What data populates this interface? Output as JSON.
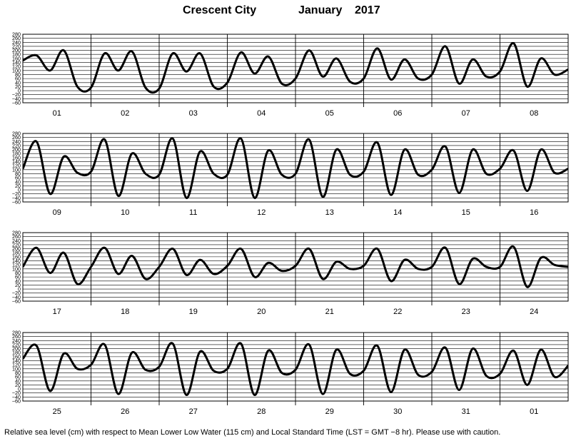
{
  "title": {
    "place": "Crescent City",
    "month": "January",
    "year": "2017"
  },
  "caption": "Relative sea level (cm) with respect to Mean Lower Low Water (115 cm) and Local Standard Time (LST = GMT −8 hr). Please use with caution.",
  "chart_data": {
    "type": "line",
    "ylim": [
      -60,
      280
    ],
    "yticks": [
      "−60",
      "−40",
      "−20",
      "0",
      "20",
      "40",
      "60",
      "80",
      "100",
      "120",
      "140",
      "160",
      "180",
      "200",
      "220",
      "240",
      "260",
      "280"
    ],
    "grid": true,
    "panels": [
      {
        "days": [
          "01",
          "02",
          "03",
          "04",
          "05",
          "06",
          "07",
          "08"
        ],
        "x": [
          0,
          0.2,
          0.4,
          0.6,
          0.8,
          1.0,
          1.2,
          1.4,
          1.6,
          1.8,
          2.0,
          2.2,
          2.4,
          2.6,
          2.8,
          3.0,
          3.2,
          3.4,
          3.6,
          3.8,
          4.0,
          4.2,
          4.4,
          4.6,
          4.8,
          5.0,
          5.2,
          5.4,
          5.6,
          5.8,
          6.0,
          6.2,
          6.4,
          6.6,
          6.8,
          7.0,
          7.2,
          7.4,
          7.6,
          7.8,
          8.0
        ],
        "y": [
          150,
          175,
          100,
          200,
          20,
          15,
          185,
          100,
          195,
          15,
          10,
          185,
          95,
          185,
          20,
          40,
          190,
          85,
          170,
          35,
          60,
          200,
          70,
          160,
          45,
          60,
          210,
          55,
          155,
          60,
          80,
          220,
          35,
          155,
          70,
          95,
          235,
          20,
          160,
          80,
          105
        ]
      },
      {
        "days": [
          "09",
          "10",
          "11",
          "12",
          "13",
          "14",
          "15",
          "16"
        ],
        "x": [
          0,
          0.2,
          0.4,
          0.6,
          0.8,
          1.0,
          1.2,
          1.4,
          1.6,
          1.8,
          2.0,
          2.2,
          2.4,
          2.6,
          2.8,
          3.0,
          3.2,
          3.4,
          3.6,
          3.8,
          4.0,
          4.2,
          4.4,
          4.6,
          4.8,
          5.0,
          5.2,
          5.4,
          5.6,
          5.8,
          6.0,
          6.2,
          6.4,
          6.6,
          6.8,
          7.0,
          7.2,
          7.4,
          7.6,
          7.8,
          8.0
        ],
        "y": [
          105,
          240,
          -20,
          165,
          85,
          90,
          250,
          -30,
          180,
          80,
          75,
          255,
          -40,
          190,
          80,
          75,
          255,
          -40,
          195,
          75,
          80,
          250,
          -35,
          200,
          75,
          90,
          235,
          -25,
          200,
          75,
          100,
          215,
          -15,
          200,
          80,
          105,
          195,
          -5,
          200,
          85,
          105
        ]
      },
      {
        "days": [
          "17",
          "18",
          "19",
          "20",
          "21",
          "22",
          "23",
          "24"
        ],
        "x": [
          0,
          0.2,
          0.4,
          0.6,
          0.8,
          1.0,
          1.2,
          1.4,
          1.6,
          1.8,
          2.0,
          2.2,
          2.4,
          2.6,
          2.8,
          3.0,
          3.2,
          3.4,
          3.6,
          3.8,
          4.0,
          4.2,
          4.4,
          4.6,
          4.8,
          5.0,
          5.2,
          5.4,
          5.6,
          5.8,
          6.0,
          6.2,
          6.4,
          6.6,
          6.8,
          7.0,
          7.2,
          7.4,
          7.6,
          7.8,
          8.0
        ],
        "y": [
          110,
          205,
          80,
          180,
          25,
          110,
          205,
          75,
          165,
          50,
          110,
          200,
          70,
          145,
          75,
          115,
          200,
          60,
          130,
          90,
          115,
          200,
          50,
          135,
          100,
          115,
          200,
          40,
          145,
          100,
          110,
          205,
          25,
          150,
          110,
          110,
          210,
          10,
          155,
          120,
          110
        ]
      },
      {
        "days": [
          "25",
          "26",
          "27",
          "28",
          "29",
          "30",
          "31",
          "01"
        ],
        "x": [
          0,
          0.2,
          0.4,
          0.6,
          0.8,
          1.0,
          1.2,
          1.4,
          1.6,
          1.8,
          2.0,
          2.2,
          2.4,
          2.6,
          2.8,
          3.0,
          3.2,
          3.4,
          3.6,
          3.8,
          4.0,
          4.2,
          4.4,
          4.6,
          4.8,
          5.0,
          5.2,
          5.4,
          5.6,
          5.8,
          6.0,
          6.2,
          6.4,
          6.6,
          6.8,
          7.0,
          7.2,
          7.4,
          7.6,
          7.8,
          8.0
        ],
        "y": [
          150,
          215,
          -10,
          175,
          100,
          120,
          220,
          -25,
          180,
          95,
          110,
          225,
          -30,
          185,
          90,
          100,
          225,
          -30,
          190,
          80,
          95,
          220,
          -25,
          195,
          75,
          90,
          215,
          -15,
          195,
          70,
          85,
          205,
          -5,
          200,
          65,
          75,
          190,
          20,
          195,
          60,
          115
        ]
      }
    ]
  }
}
